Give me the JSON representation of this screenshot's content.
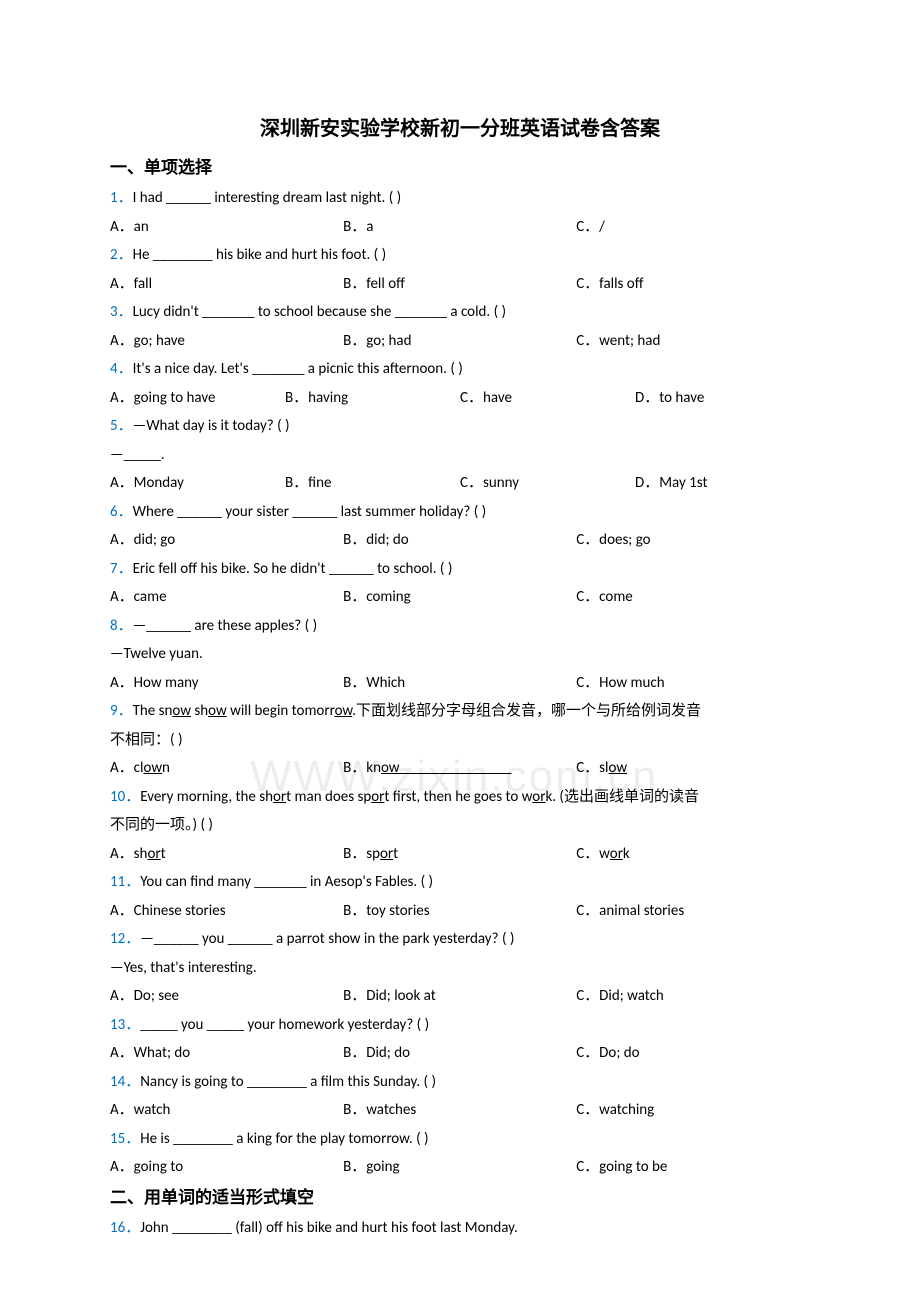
{
  "title": "深圳新安实验学校新初一分班英语试卷含答案",
  "watermark": "WWW.zixin.com.cn",
  "colors": {
    "qnum": "#0070c0",
    "text": "#000000",
    "background": "#ffffff"
  },
  "sections": [
    {
      "header": "一、单项选择",
      "questions": [
        {
          "num": "1．",
          "stem": "I had ______ interesting dream last night. (   )",
          "opts": [
            "A．an",
            "B．a",
            "C．/"
          ],
          "cols": 3
        },
        {
          "num": "2．",
          "stem": "He ________ his bike and hurt his foot. (   )",
          "opts": [
            "A．fall",
            "B．fell off",
            "C．falls off"
          ],
          "cols": 3
        },
        {
          "num": "3．",
          "stem": "Lucy didn't _______ to school because she _______ a cold. (   )",
          "opts": [
            "A．go; have",
            "B．go; had",
            "C．went; had"
          ],
          "cols": 3
        },
        {
          "num": "4．",
          "stem": "It's a nice day. Let's _______ a picnic this afternoon. (   )",
          "opts": [
            "A．going to have",
            "B．having",
            "C．have",
            "D．to have"
          ],
          "cols": 4
        },
        {
          "num": "5．",
          "stem": "—What day is it today? (   )",
          "continuation": "—_____.",
          "opts": [
            "A．Monday",
            "B．fine",
            "C．sunny",
            "D．May 1st"
          ],
          "cols": 4
        },
        {
          "num": "6．",
          "stem": "Where ______ your sister ______ last summer holiday? (   )",
          "opts": [
            "A．did; go",
            "B．did; do",
            "C．does; go"
          ],
          "cols": 3
        },
        {
          "num": "7．",
          "stem": "Eric fell off his bike. So he didn't ______ to school. (    )",
          "opts": [
            "A．came",
            "B．coming",
            "C．come"
          ],
          "cols": 3
        },
        {
          "num": "8．",
          "stem": "—______ are these apples? (   )",
          "continuation": "—Twelve yuan.",
          "opts": [
            "A．How many",
            "B．Which",
            "C．How much"
          ],
          "cols": 3
        },
        {
          "num": "9．",
          "stem_html": "The sn<span class='u'>ow</span> sh<span class='u'>ow</span> will begin tomorr<span class='u'>ow</span>.下面划线部分字母组合发音，哪一个与所给例词发音",
          "continuation": "不相同：(   )",
          "opts_html": [
            "A．cl<span class='u'>ow</span>n",
            "B．kn<span class='u'>ow</span>",
            "C．sl<span class='u'>ow</span>"
          ],
          "cols": 3,
          "opt_b_underline_ext": true
        },
        {
          "num": "10．",
          "stem_html": "Every morning, the sh<span class='u'>or</span>t man does sp<span class='u'>or</span>t first, then he goes to w<span class='u'>or</span>k. (选出画线单词的读音",
          "continuation": "不同的一项。) (   )",
          "opts_html": [
            "A．sh<span class='u'>or</span>t",
            "B．sp<span class='u'>or</span>t",
            "C．w<span class='u'>or</span>k"
          ],
          "cols": 3
        },
        {
          "num": "11．",
          "stem": "You can find many _______ in Aesop's Fables. (   )",
          "opts": [
            "A．Chinese stories",
            "B．toy stories",
            "C．animal stories"
          ],
          "cols": 3
        },
        {
          "num": "12．",
          "stem": "—______ you ______ a parrot show in the park yesterday? (   )",
          "continuation": "—Yes, that's interesting.",
          "opts": [
            "A．Do; see",
            "B．Did; look at",
            "C．Did; watch"
          ],
          "cols": 3
        },
        {
          "num": "13．",
          "stem": "_____ you _____ your homework yesterday? (   )",
          "opts": [
            "A．What; do",
            "B．Did; do",
            "C．Do; do"
          ],
          "cols": 3
        },
        {
          "num": "14．",
          "stem": "Nancy is going to ________ a film this Sunday. (    )",
          "opts": [
            "A．watch",
            "B．watches",
            "C．watching"
          ],
          "cols": 3
        },
        {
          "num": "15．",
          "stem": "He is ________ a king for the play tomorrow. (    )",
          "opts": [
            "A．going to",
            "B．going",
            "C．going to be"
          ],
          "cols": 3
        }
      ]
    },
    {
      "header": "二、用单词的适当形式填空",
      "questions": [
        {
          "num": "16．",
          "stem": "John ________ (fall) off his bike and hurt his foot last Monday."
        }
      ]
    }
  ]
}
